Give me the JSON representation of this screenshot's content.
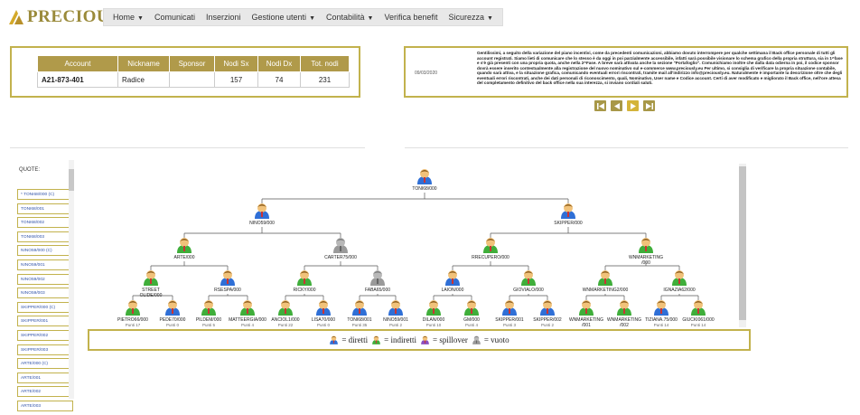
{
  "brand": {
    "name": "PRECIOUSLY"
  },
  "nav": [
    {
      "label": "Home",
      "caret": true
    },
    {
      "label": "Comunicati",
      "caret": false
    },
    {
      "label": "Inserzioni",
      "caret": false
    },
    {
      "label": "Gestione utenti",
      "caret": true
    },
    {
      "label": "Contabilità",
      "caret": true
    },
    {
      "label": "Verifica benefit",
      "caret": false
    },
    {
      "label": "Sicurezza",
      "caret": true
    }
  ],
  "account_table": {
    "headers": [
      "Account",
      "Nickname",
      "Sponsor",
      "Nodi Sx",
      "Nodi Dx",
      "Tot. nodi"
    ],
    "row": [
      "A21-873-401",
      "Radice",
      "",
      "157",
      "74",
      "231"
    ]
  },
  "message": {
    "date": "09/03/2020",
    "text": "Gentilissimi, a seguito della variazione del piano incentivi, come da precedenti comunicazioni, abbiamo dovuto interrompere per qualche settimana il Back office personale di tutti gli account registrati. Siamo lieti di comunicare che lo stesso è da oggi in poi parzialmente accessibile, infatti sarà possibile visionare lo schema grafico della propria struttura, sia in 1^fase e s'è già presenti con una propria quota, anche nella 2^Fase. A breve sarà attivata anche la sezione \"Portafoglio\". Comunichiamo inoltre che dalla data odierna in poi, il codice sponsor dovrà essere inserito contestualmente alla registrazione del nuovo nominativo sul e-commerce www.preciously.eu Per ultimo, si consiglia di verificare la propria situazione contabile, quando sarà attiva, e la situazione grafica, comunicando eventuali errori riscontrati, tramite mail all'indirizzo info@preciously.eu. Naturalmente è importante la descrizione oltre che degli eventuali errori riscontrati, anche dei dati personali di riconoscimento, quali, Nominativo, User name e Codice account. Certi di aver modificato e migliorato il Back office, nell'ore attesa del completamento definitivo del back office nella sua interezza, si inviano cordiali saluti."
  },
  "pager": [
    "first",
    "prev",
    "next",
    "last"
  ],
  "quote": {
    "title": "QUOTE:",
    "items": [
      "* TONI68/000 (C)",
      "TONI68/001",
      "TONI68/002",
      "TONI68/003",
      "NINO59/000 (C)",
      "NINO59/001",
      "NINO59/002",
      "NINO59/003",
      "SKIPPER/000 (C)",
      "SKIPPER/001",
      "SKIPPER/002",
      "SKIPPER/003",
      "ARTE/000 (C)",
      "ARTE/001",
      "ARTE/002",
      "ARTE/003"
    ]
  },
  "tree": {
    "nodes": [
      {
        "id": "root",
        "label": "TONI68/000",
        "color": "blue",
        "sub": ""
      },
      {
        "id": "l",
        "label": "NINO59/000",
        "color": "blue",
        "sub": ""
      },
      {
        "id": "r",
        "label": "SKIPPER/000",
        "color": "blue",
        "sub": ""
      },
      {
        "id": "ll",
        "label": "ARTE/000",
        "color": "green",
        "sub": ""
      },
      {
        "id": "lr",
        "label": "CARTER75/000",
        "color": "grey",
        "sub": ""
      },
      {
        "id": "rl",
        "label": "RRECUPERO/000",
        "color": "green",
        "sub": ""
      },
      {
        "id": "rr",
        "label": "WNMARKETING /000",
        "color": "green",
        "sub": ""
      },
      {
        "id": "lll",
        "label": "STREET OLIDE/000",
        "color": "green",
        "sub": ""
      },
      {
        "id": "llr",
        "label": "RSESPA/000",
        "color": "blue",
        "sub": ""
      },
      {
        "id": "lrl",
        "label": "RICKY/000",
        "color": "green",
        "sub": ""
      },
      {
        "id": "lrr",
        "label": "FABA65/000",
        "color": "grey",
        "sub": ""
      },
      {
        "id": "rll",
        "label": "LAION/000",
        "color": "blue",
        "sub": ""
      },
      {
        "id": "rlr",
        "label": "GIOVIALO/000",
        "color": "green",
        "sub": ""
      },
      {
        "id": "rrl",
        "label": "WNMARKETING2/000",
        "color": "green",
        "sub": ""
      },
      {
        "id": "rrr",
        "label": "IGNAZIA62/000",
        "color": "green",
        "sub": ""
      },
      {
        "id": "a1",
        "label": "PIETRO66/000",
        "color": "green",
        "sub": "Punti 17"
      },
      {
        "id": "a2",
        "label": "PEDE70/000",
        "color": "blue",
        "sub": "Punti 0"
      },
      {
        "id": "a3",
        "label": "PILDEM/000",
        "color": "green",
        "sub": "Punti 5"
      },
      {
        "id": "a4",
        "label": "MATTEERGIA/000",
        "color": "green",
        "sub": "Punti 4"
      },
      {
        "id": "a5",
        "label": "ANCIOL1/000",
        "color": "green",
        "sub": "Punti 22"
      },
      {
        "id": "a6",
        "label": "LISA70/000",
        "color": "blue",
        "sub": "Punti 0"
      },
      {
        "id": "a7",
        "label": "TONI68/001",
        "color": "blue",
        "sub": "Punti 35"
      },
      {
        "id": "a8",
        "label": "NINO59/001",
        "color": "blue",
        "sub": "Punti 2"
      },
      {
        "id": "a9",
        "label": "DILAN/000",
        "color": "green",
        "sub": "Punti 10"
      },
      {
        "id": "a10",
        "label": "GM/000",
        "color": "green",
        "sub": "Punti 4"
      },
      {
        "id": "a11",
        "label": "SKIPPER/001",
        "color": "blue",
        "sub": "Punti 3"
      },
      {
        "id": "a12",
        "label": "SKIPPER/002",
        "color": "blue",
        "sub": "Punti 2"
      },
      {
        "id": "a13",
        "label": "WNMARKETING /001",
        "color": "green",
        "sub": ""
      },
      {
        "id": "a14",
        "label": "WNMARKETING /002",
        "color": "green",
        "sub": ""
      },
      {
        "id": "a15",
        "label": "TIZIANA.75/000",
        "color": "blue",
        "sub": "Punti 14"
      },
      {
        "id": "a16",
        "label": "GIUCKI061/000",
        "color": "green",
        "sub": "Punti 14"
      }
    ]
  },
  "legend": [
    {
      "color": "blue",
      "text": "= diretti"
    },
    {
      "color": "green",
      "text": "= indiretti"
    },
    {
      "color": "purple",
      "text": "= spillover"
    },
    {
      "color": "grey",
      "text": "= vuoto"
    }
  ],
  "colors": {
    "blue": "#2f6fd6",
    "green": "#3fae3a",
    "purple": "#8a4fc0",
    "grey": "#9a9a9a",
    "accent": "#c2b24d"
  }
}
